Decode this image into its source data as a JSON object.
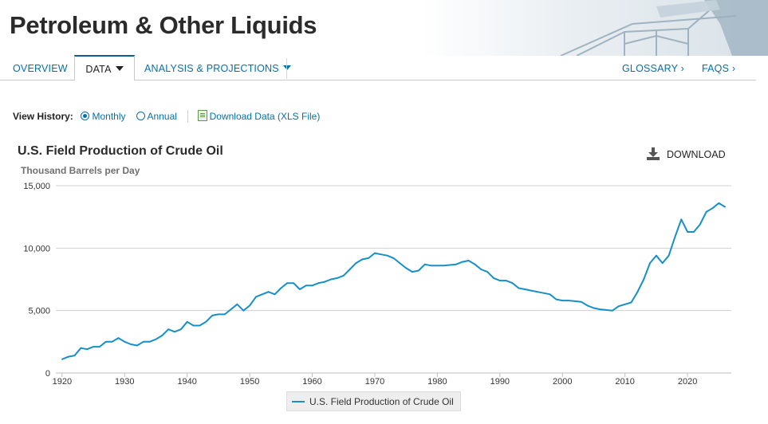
{
  "header": {
    "title": "Petroleum & Other Liquids"
  },
  "nav": {
    "overview": "OVERVIEW",
    "data": "DATA",
    "analysis": "ANALYSIS & PROJECTIONS",
    "glossary": "GLOSSARY  ›",
    "faqs": "FAQS  ›"
  },
  "history": {
    "label": "View History:",
    "monthly": "Monthly",
    "annual": "Annual",
    "download_xls": "Download Data (XLS File)"
  },
  "download_label": "DOWNLOAD",
  "colors": {
    "series": "#168fca",
    "link": "#0a6ea8"
  },
  "chart_data": {
    "type": "line",
    "title": "U.S. Field Production of Crude Oil",
    "ylabel": "Thousand Barrels per Day",
    "xlabel": "",
    "xlim": [
      1919,
      2027
    ],
    "ylim": [
      0,
      15000
    ],
    "y_ticks": [
      0,
      5000,
      10000,
      15000
    ],
    "y_tick_labels": [
      "0",
      "5,000",
      "10,000",
      "15,000"
    ],
    "x_ticks": [
      1920,
      1930,
      1940,
      1950,
      1960,
      1970,
      1980,
      1990,
      2000,
      2010,
      2020
    ],
    "x_tick_labels": [
      "1920",
      "1930",
      "1940",
      "1950",
      "1960",
      "1970",
      "1980",
      "1990",
      "2000",
      "2010",
      "2020"
    ],
    "grid": true,
    "legend": "bottom-center",
    "series": [
      {
        "name": "U.S. Field Production of Crude Oil",
        "x": [
          1920,
          1921,
          1922,
          1923,
          1924,
          1925,
          1926,
          1927,
          1928,
          1929,
          1930,
          1931,
          1932,
          1933,
          1934,
          1935,
          1936,
          1937,
          1938,
          1939,
          1940,
          1941,
          1942,
          1943,
          1944,
          1945,
          1946,
          1947,
          1948,
          1949,
          1950,
          1951,
          1952,
          1953,
          1954,
          1955,
          1956,
          1957,
          1958,
          1959,
          1960,
          1961,
          1962,
          1963,
          1964,
          1965,
          1966,
          1967,
          1968,
          1969,
          1970,
          1971,
          1972,
          1973,
          1974,
          1975,
          1976,
          1977,
          1978,
          1979,
          1980,
          1981,
          1982,
          1983,
          1984,
          1985,
          1986,
          1987,
          1988,
          1989,
          1990,
          1991,
          1992,
          1993,
          1994,
          1995,
          1996,
          1997,
          1998,
          1999,
          2000,
          2001,
          2002,
          2003,
          2004,
          2005,
          2006,
          2007,
          2008,
          2009,
          2010,
          2011,
          2012,
          2013,
          2014,
          2015,
          2016,
          2017,
          2018,
          2019,
          2020,
          2021,
          2022,
          2023,
          2024,
          2025,
          2026
        ],
        "y": [
          1100,
          1300,
          1400,
          2000,
          1900,
          2100,
          2100,
          2500,
          2500,
          2800,
          2500,
          2300,
          2200,
          2500,
          2500,
          2700,
          3000,
          3500,
          3300,
          3500,
          4100,
          3800,
          3800,
          4100,
          4600,
          4700,
          4700,
          5100,
          5500,
          5000,
          5400,
          6100,
          6300,
          6500,
          6300,
          6800,
          7200,
          7200,
          6700,
          7000,
          7000,
          7200,
          7300,
          7500,
          7600,
          7800,
          8300,
          8800,
          9100,
          9200,
          9600,
          9500,
          9400,
          9200,
          8800,
          8400,
          8100,
          8200,
          8700,
          8600,
          8600,
          8600,
          8650,
          8700,
          8900,
          9000,
          8700,
          8300,
          8100,
          7600,
          7400,
          7400,
          7200,
          6800,
          6700,
          6600,
          6500,
          6400,
          6300,
          5900,
          5800,
          5800,
          5750,
          5700,
          5400,
          5200,
          5100,
          5050,
          5000,
          5350,
          5500,
          5650,
          6500,
          7500,
          8800,
          9400,
          8800,
          9400,
          10900,
          12300,
          11300,
          11300,
          11900,
          12900,
          13200,
          13600,
          13300
        ]
      }
    ]
  }
}
